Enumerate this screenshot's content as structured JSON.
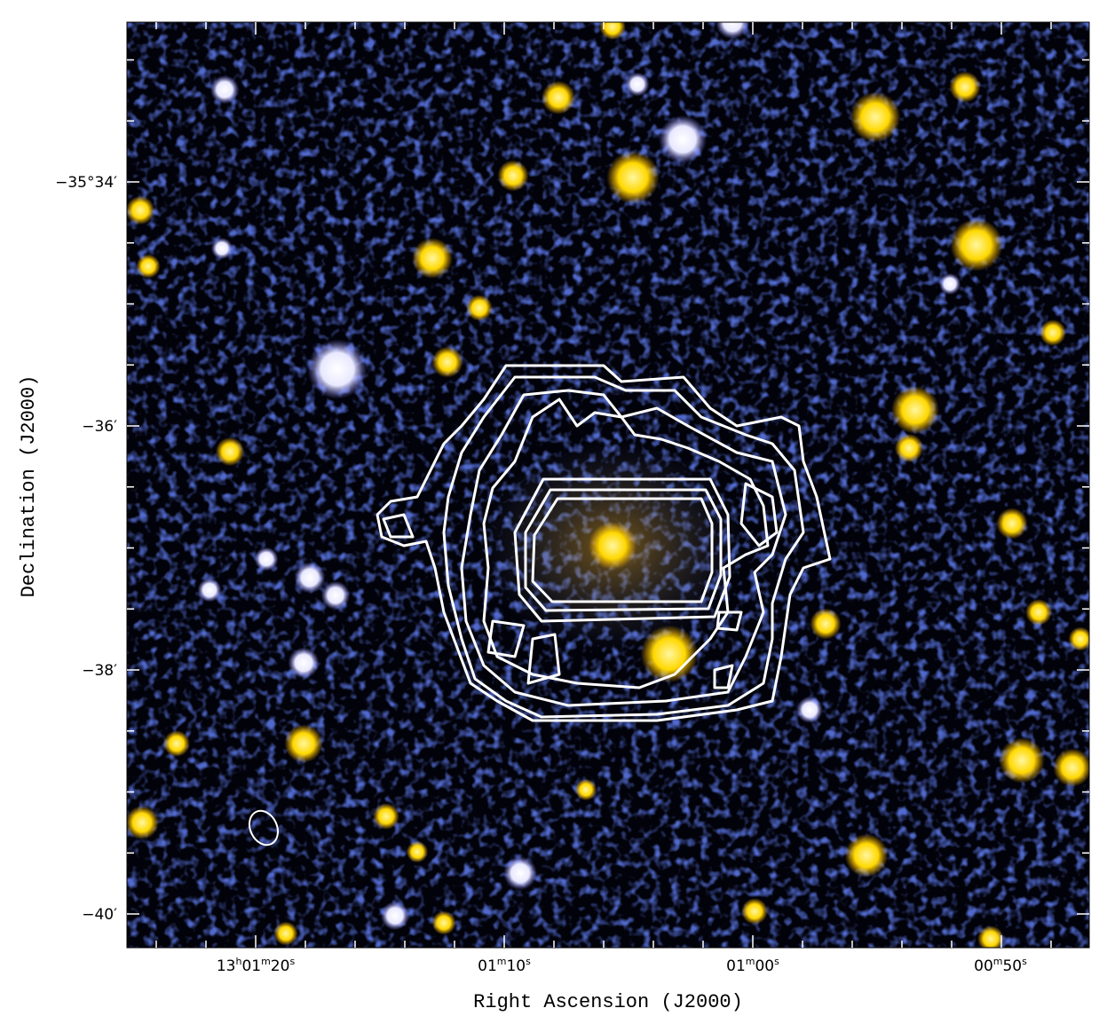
{
  "image": {
    "x_axis_title": "Right Ascension (J2000)",
    "y_axis_title": "Declination (J2000)",
    "x_tick_labels": [
      [
        "13",
        "h",
        "01",
        "m",
        "20",
        "s"
      ],
      [
        "01",
        "m",
        "10",
        "s"
      ],
      [
        "01",
        "m",
        "00",
        "s"
      ],
      [
        "00",
        "m",
        "50",
        "s"
      ]
    ],
    "y_tick_labels": [
      "−35°34′",
      "−36′",
      "−38′",
      "−40′"
    ]
  }
}
